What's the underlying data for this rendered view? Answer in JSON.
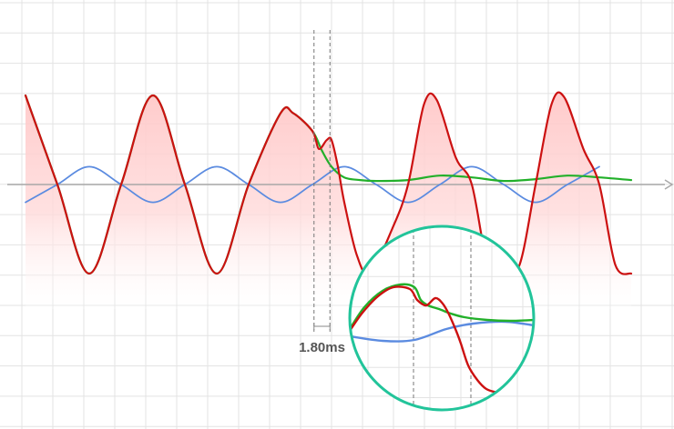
{
  "chart_data": {
    "type": "line",
    "title": "",
    "xlabel": "",
    "ylabel": "",
    "grid": true,
    "legend": "none",
    "time_unit": "ms",
    "x_range_ms": [
      0,
      20.5
    ],
    "y_range": [
      -1.0,
      1.0
    ],
    "marker_interval": {
      "label": "1.80ms",
      "start_ms": 9.05,
      "end_ms": 9.55
    },
    "zoom_inset": {
      "shape": "circle",
      "border_color": "#22c49a",
      "region_ms": [
        9.0,
        10.8
      ]
    },
    "series": [
      {
        "color": "#cc1111",
        "fill": "#ffd6d6",
        "points": [
          [
            0.0,
            1.0
          ],
          [
            1.0,
            0.0
          ],
          [
            2.0,
            -1.0
          ],
          [
            3.0,
            0.0
          ],
          [
            4.0,
            1.0
          ],
          [
            5.0,
            0.0
          ],
          [
            6.0,
            -1.0
          ],
          [
            7.0,
            0.0
          ],
          [
            8.0,
            0.8
          ],
          [
            8.4,
            0.8
          ],
          [
            9.0,
            0.6
          ],
          [
            9.2,
            0.4
          ],
          [
            9.45,
            0.5
          ],
          [
            9.6,
            0.5
          ],
          [
            9.8,
            0.2
          ],
          [
            10.0,
            -0.2
          ],
          [
            10.4,
            -0.8
          ],
          [
            10.8,
            -1.0
          ],
          [
            11.5,
            -0.5
          ],
          [
            12.0,
            0.0
          ],
          [
            12.5,
            0.9
          ],
          [
            12.9,
            0.95
          ],
          [
            13.5,
            0.3
          ],
          [
            14.0,
            0.0
          ],
          [
            14.5,
            -0.9
          ],
          [
            15.0,
            -1.0
          ],
          [
            15.5,
            -0.9
          ],
          [
            16.0,
            0.0
          ],
          [
            16.5,
            0.9
          ],
          [
            16.9,
            0.98
          ],
          [
            17.5,
            0.4
          ],
          [
            18.0,
            0.0
          ],
          [
            18.5,
            -0.9
          ],
          [
            19.0,
            -1.0
          ]
        ]
      },
      {
        "color": "#22b02a",
        "points": [
          [
            0.0,
            1.0
          ],
          [
            1.0,
            0.0
          ],
          [
            2.0,
            -1.0
          ],
          [
            3.0,
            0.0
          ],
          [
            4.0,
            1.0
          ],
          [
            5.0,
            0.0
          ],
          [
            6.0,
            -1.0
          ],
          [
            7.0,
            0.0
          ],
          [
            8.0,
            0.8
          ],
          [
            8.4,
            0.8
          ],
          [
            9.0,
            0.6
          ],
          [
            9.3,
            0.38
          ],
          [
            9.6,
            0.2
          ],
          [
            10.0,
            0.08
          ],
          [
            10.5,
            0.05
          ],
          [
            11.0,
            0.04
          ],
          [
            12.0,
            0.05
          ],
          [
            13.0,
            0.1
          ],
          [
            14.0,
            0.08
          ],
          [
            15.0,
            0.04
          ],
          [
            16.0,
            0.06
          ],
          [
            17.0,
            0.1
          ],
          [
            18.0,
            0.08
          ],
          [
            19.0,
            0.05
          ]
        ]
      },
      {
        "color": "#5b8be0",
        "points": [
          [
            0.0,
            -0.2
          ],
          [
            1.0,
            0.0
          ],
          [
            2.0,
            0.2
          ],
          [
            3.0,
            0.0
          ],
          [
            4.0,
            -0.2
          ],
          [
            5.0,
            0.0
          ],
          [
            6.0,
            0.2
          ],
          [
            7.0,
            0.0
          ],
          [
            8.0,
            -0.2
          ],
          [
            9.0,
            0.0
          ],
          [
            10.0,
            0.2
          ],
          [
            11.0,
            0.0
          ],
          [
            12.0,
            -0.2
          ],
          [
            13.0,
            0.0
          ],
          [
            14.0,
            0.2
          ],
          [
            15.0,
            0.0
          ],
          [
            16.0,
            -0.2
          ],
          [
            17.0,
            0.0
          ],
          [
            18.0,
            0.2
          ]
        ]
      }
    ]
  }
}
